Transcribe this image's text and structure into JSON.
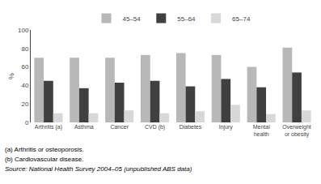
{
  "chart_data": {
    "type": "bar",
    "categories": [
      "Arthritis (a)",
      "Asthma",
      "Cancer",
      "CVD (b)",
      "Diabetes",
      "Injury",
      "Mental\nhealth",
      "Overweight\nor obesity"
    ],
    "series": [
      {
        "name": "45–54",
        "color": "#b8b8b8",
        "values": [
          70,
          70,
          70,
          73,
          75,
          73,
          60,
          81
        ]
      },
      {
        "name": "55–64",
        "color": "#404040",
        "values": [
          45,
          37,
          43,
          45,
          39,
          47,
          38,
          54
        ]
      },
      {
        "name": "65–74",
        "color": "#d8d8d8",
        "values": [
          10,
          10,
          13,
          10,
          12,
          19,
          9,
          13
        ]
      }
    ],
    "ylabel": "%",
    "ylim": [
      0,
      100
    ],
    "yticks": [
      0,
      20,
      40,
      60,
      80,
      100
    ],
    "grid": false,
    "legend": "upper center",
    "annotations": [
      "(a) Arthritis or osteoporosis.",
      "(b) Cardiovascular disease.",
      "Source: National Health Survey 2004–05 (unpublished ABS data)"
    ]
  }
}
